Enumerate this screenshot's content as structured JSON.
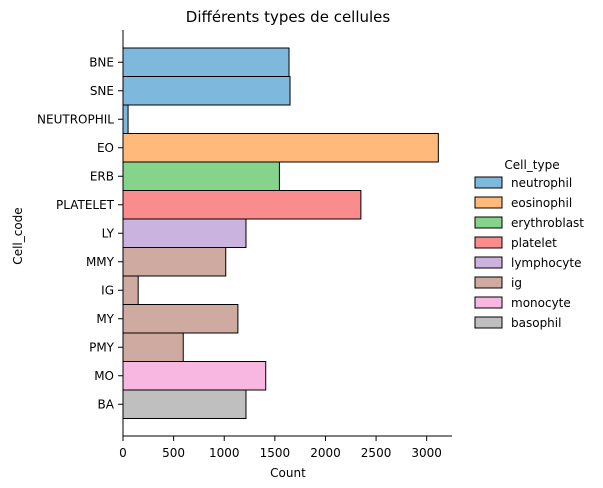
{
  "chart_data": {
    "type": "bar",
    "orientation": "horizontal",
    "title": "Différents types de cellules",
    "xlabel": "Count",
    "ylabel": "Cell_code",
    "xlim": [
      0,
      3250
    ],
    "xticks": [
      0,
      500,
      1000,
      1500,
      2000,
      2500,
      3000
    ],
    "grid": false,
    "categories": [
      "BNE",
      "SNE",
      "NEUTROPHIL",
      "EO",
      "ERB",
      "PLATELET",
      "LY",
      "MMY",
      "IG",
      "MY",
      "PMY",
      "MO",
      "BA"
    ],
    "values": [
      1640,
      1650,
      50,
      3115,
      1545,
      2350,
      1215,
      1015,
      150,
      1135,
      595,
      1410,
      1215
    ],
    "bar_type": [
      "neutrophil",
      "neutrophil",
      "neutrophil",
      "eosinophil",
      "erythroblast",
      "platelet",
      "lymphocyte",
      "ig",
      "ig",
      "ig",
      "ig",
      "monocyte",
      "basophil"
    ],
    "legend": {
      "title": "Cell_type",
      "placement": "right",
      "entries": [
        {
          "name": "neutrophil",
          "color": "#7fb8dd"
        },
        {
          "name": "eosinophil",
          "color": "#ffb97a"
        },
        {
          "name": "erythroblast",
          "color": "#86d38b"
        },
        {
          "name": "platelet",
          "color": "#fa8c8e"
        },
        {
          "name": "lymphocyte",
          "color": "#cbb3df"
        },
        {
          "name": "ig",
          "color": "#cfaaa0"
        },
        {
          "name": "monocyte",
          "color": "#f7b7e1"
        },
        {
          "name": "basophil",
          "color": "#bfbfbf"
        }
      ]
    }
  }
}
